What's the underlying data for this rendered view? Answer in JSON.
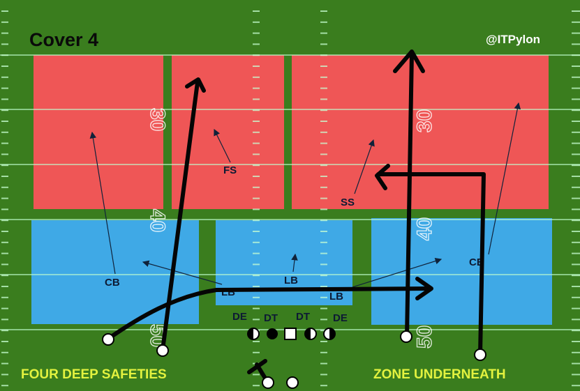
{
  "title": "Cover 4",
  "handle": "@ITPylon",
  "footer": {
    "left": "FOUR DEEP SAFETIES",
    "right": "ZONE UNDERNEATH"
  },
  "colors": {
    "field": "#3a7d1e",
    "deep_zone": "#ef5656",
    "underneath_zone": "#3fa9e6",
    "caption": "#e3f23f"
  },
  "yard_numbers": {
    "left": [
      "30",
      "40",
      "50"
    ],
    "right": [
      "30",
      "40",
      "50"
    ]
  },
  "defense": {
    "deep": [
      "FS",
      "SS"
    ],
    "corners": [
      "CB",
      "CB"
    ],
    "linebackers": [
      "LB",
      "LB",
      "LB"
    ],
    "line": [
      "DE",
      "DT",
      "DT",
      "DE"
    ]
  }
}
